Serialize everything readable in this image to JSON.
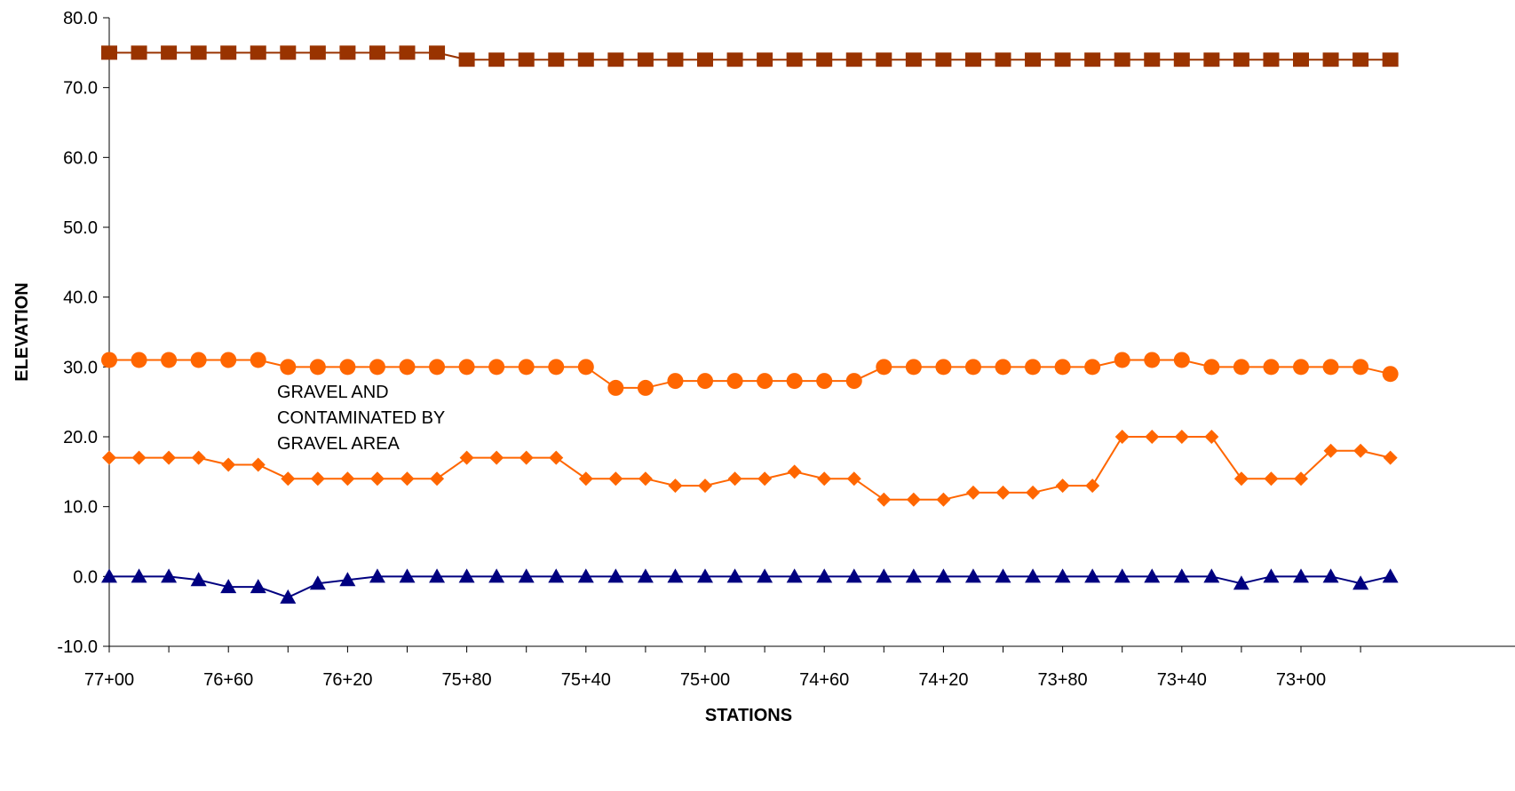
{
  "chart_data": {
    "type": "line",
    "title": "",
    "xlabel": "STATIONS",
    "ylabel": "ELEVATION",
    "ylim": [
      -10,
      80
    ],
    "y_ticks": [
      "80.0",
      "70.0",
      "60.0",
      "50.0",
      "40.0",
      "30.0",
      "20.0",
      "10.0",
      "0.0",
      "-10.0"
    ],
    "y_tick_values": [
      80,
      70,
      60,
      50,
      40,
      30,
      20,
      10,
      0,
      -10
    ],
    "x_points": 44,
    "x_tick_labels": [
      "77+00",
      "76+60",
      "76+20",
      "75+80",
      "75+40",
      "75+00",
      "74+60",
      "74+20",
      "73+80",
      "73+40",
      "73+00"
    ],
    "x_tick_label_every": 4,
    "grid": false,
    "legend": "none",
    "annotations": [
      "GRAVEL AND",
      "CONTAMINATED BY",
      "GRAVEL AREA"
    ],
    "series": [
      {
        "marker": "square",
        "color": "#993300",
        "values": [
          75,
          75,
          75,
          75,
          75,
          75,
          75,
          75,
          75,
          75,
          75,
          75,
          74,
          74,
          74,
          74,
          74,
          74,
          74,
          74,
          74,
          74,
          74,
          74,
          74,
          74,
          74,
          74,
          74,
          74,
          74,
          74,
          74,
          74,
          74,
          74,
          74,
          74,
          74,
          74,
          74,
          74,
          74,
          74
        ]
      },
      {
        "marker": "circle",
        "color": "#FF6600",
        "values": [
          31,
          31,
          31,
          31,
          31,
          31,
          30,
          30,
          30,
          30,
          30,
          30,
          30,
          30,
          30,
          30,
          30,
          27,
          27,
          28,
          28,
          28,
          28,
          28,
          28,
          28,
          30,
          30,
          30,
          30,
          30,
          30,
          30,
          30,
          31,
          31,
          31,
          30,
          30,
          30,
          30,
          30,
          30,
          29
        ]
      },
      {
        "marker": "diamond",
        "color": "#FF6600",
        "values": [
          17,
          17,
          17,
          17,
          16,
          16,
          14,
          14,
          14,
          14,
          14,
          14,
          17,
          17,
          17,
          17,
          14,
          14,
          14,
          13,
          13,
          14,
          14,
          15,
          14,
          14,
          11,
          11,
          11,
          12,
          12,
          12,
          13,
          13,
          20,
          20,
          20,
          20,
          14,
          14,
          14,
          18,
          18,
          17
        ]
      },
      {
        "marker": "triangle",
        "color": "#000080",
        "values": [
          0,
          0,
          0,
          -0.5,
          -1.5,
          -1.5,
          -3,
          -1,
          -0.5,
          0,
          0,
          0,
          0,
          0,
          0,
          0,
          0,
          0,
          0,
          0,
          0,
          0,
          0,
          0,
          0,
          0,
          0,
          0,
          0,
          0,
          0,
          0,
          0,
          0,
          0,
          0,
          0,
          0,
          -1,
          0,
          0,
          0,
          -1,
          0
        ]
      }
    ]
  }
}
